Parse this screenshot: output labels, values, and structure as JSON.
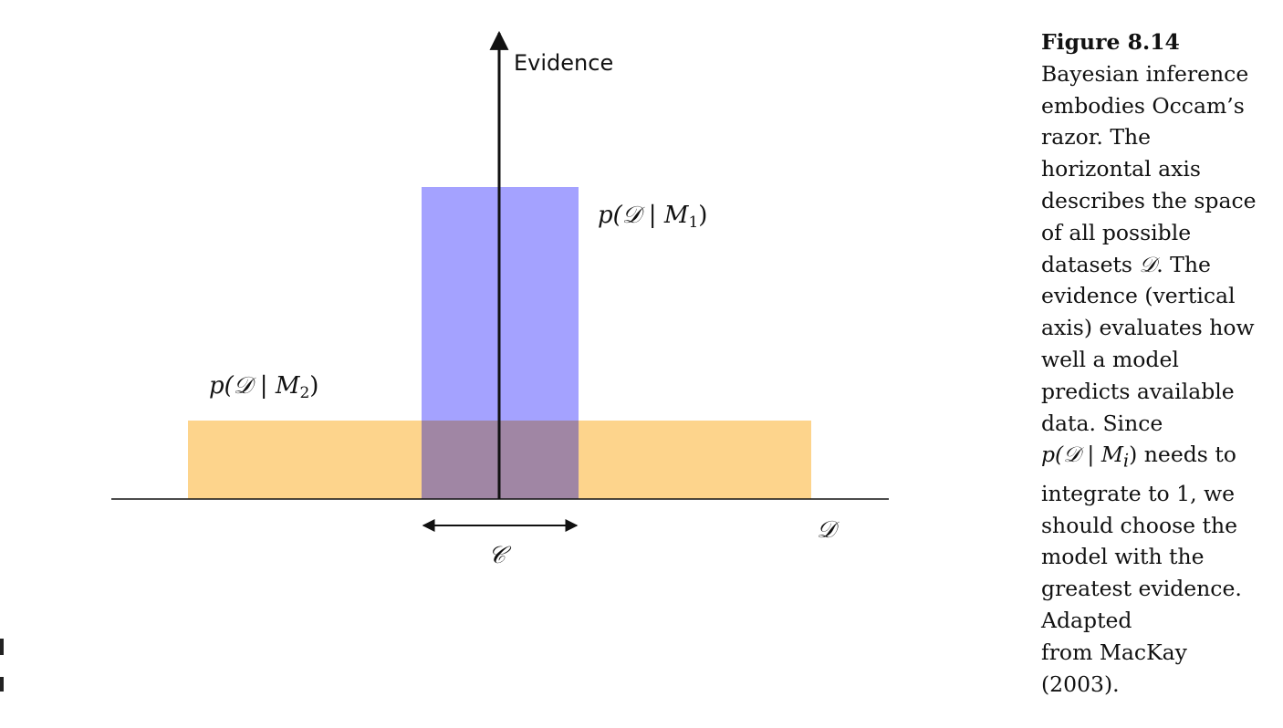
{
  "figure": {
    "labels": {
      "y_axis": "Evidence",
      "x_axis": "𝒟",
      "interval": "𝒞",
      "m1_prefix": "p(𝒟 | M",
      "m1_sub": "1",
      "m2_prefix": "p(𝒟 | M",
      "m2_sub": "2",
      "close_paren": ")"
    },
    "colors": {
      "m1_box": "#a4a2ff",
      "m2_box": "#fdd48c",
      "overlap": "#a086a4",
      "axis": "#111111"
    }
  },
  "caption": {
    "title": "Figure 8.14",
    "lines": [
      "Bayesian inference",
      "embodies Occam’s",
      "razor. The",
      "horizontal axis",
      "describes the space",
      "of all possible"
    ],
    "line_datasets_prefix": "datasets ",
    "line_datasets_symbol": "𝒟",
    "line_datasets_suffix": ". The",
    "lines_b": [
      "evidence (vertical",
      "axis) evaluates how",
      "well a model",
      "predicts available",
      "data. Since"
    ],
    "line_needs_prefix": "p(𝒟 | M",
    "line_needs_sub": "i",
    "line_needs_suffix": ") needs to",
    "lines_c": [
      "integrate to 1, we",
      "should choose the",
      "model with the",
      "greatest evidence.",
      "Adapted",
      "from MacKay",
      "(2003)."
    ]
  }
}
